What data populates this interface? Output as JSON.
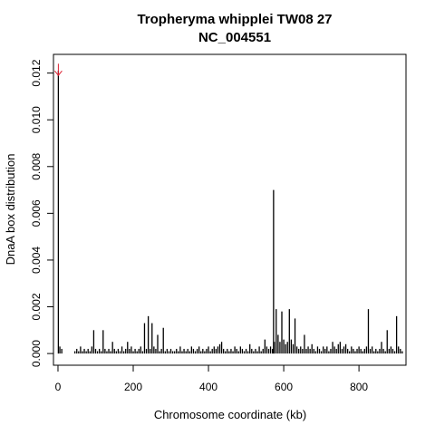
{
  "chart_data": {
    "type": "bar",
    "title": "Tropheryma whipplei TW08 27",
    "subtitle": "NC_004551",
    "xlabel": "Chromosome coordinate (kb)",
    "ylabel": "DnaA box distribution",
    "xlim": [
      -12,
      925
    ],
    "ylim": [
      -0.0005,
      0.0128
    ],
    "xticks": [
      0,
      200,
      400,
      600,
      800
    ],
    "xtick_labels": [
      "0",
      "200",
      "400",
      "600",
      "800"
    ],
    "yticks": [
      0.0,
      0.002,
      0.004,
      0.006,
      0.008,
      0.01,
      0.012
    ],
    "ytick_labels": [
      "0.000",
      "0.002",
      "0.004",
      "0.006",
      "0.008",
      "0.010",
      "0.012"
    ],
    "grid": false,
    "arrow": {
      "x": 1,
      "color": "#dd2233"
    },
    "x": [
      1,
      5,
      10,
      45,
      50,
      55,
      60,
      65,
      70,
      75,
      80,
      85,
      90,
      95,
      100,
      105,
      110,
      115,
      120,
      125,
      130,
      135,
      140,
      145,
      150,
      155,
      160,
      165,
      170,
      175,
      180,
      185,
      190,
      195,
      200,
      205,
      210,
      215,
      220,
      225,
      230,
      235,
      240,
      245,
      250,
      255,
      260,
      265,
      270,
      275,
      280,
      285,
      290,
      295,
      300,
      305,
      310,
      315,
      320,
      325,
      330,
      335,
      340,
      345,
      350,
      355,
      360,
      365,
      370,
      375,
      380,
      385,
      390,
      395,
      400,
      405,
      410,
      415,
      420,
      425,
      430,
      435,
      440,
      445,
      450,
      455,
      460,
      465,
      470,
      475,
      480,
      485,
      490,
      495,
      500,
      505,
      510,
      515,
      520,
      525,
      530,
      535,
      540,
      545,
      550,
      555,
      560,
      565,
      570,
      573,
      575,
      580,
      585,
      590,
      595,
      600,
      605,
      610,
      615,
      620,
      625,
      630,
      635,
      640,
      645,
      650,
      655,
      660,
      665,
      670,
      675,
      680,
      685,
      690,
      695,
      700,
      705,
      710,
      715,
      720,
      725,
      730,
      735,
      740,
      745,
      750,
      755,
      760,
      765,
      770,
      775,
      780,
      785,
      790,
      795,
      800,
      805,
      810,
      815,
      820,
      825,
      830,
      835,
      840,
      845,
      850,
      855,
      860,
      865,
      870,
      875,
      880,
      885,
      890,
      895,
      900,
      905,
      910,
      915
    ],
    "values": [
      0.0121,
      0.0003,
      0.0002,
      0.0001,
      0.0002,
      0.0001,
      0.0003,
      0.0001,
      0.0002,
      0.0001,
      0.0002,
      0.0001,
      0.0003,
      0.001,
      0.0002,
      0.0001,
      0.0002,
      0.0001,
      0.001,
      0.0002,
      0.0001,
      0.0002,
      0.0001,
      0.0005,
      0.0002,
      0.0001,
      0.0002,
      0.0001,
      0.0003,
      0.0001,
      0.0002,
      0.0005,
      0.0002,
      0.0003,
      0.0001,
      0.0002,
      0.0001,
      0.0002,
      0.0003,
      0.0001,
      0.0013,
      0.0002,
      0.0016,
      0.0002,
      0.0013,
      0.0003,
      0.0002,
      0.0008,
      0.0001,
      0.0002,
      0.0011,
      0.0001,
      0.0002,
      0.0001,
      0.0002,
      0.0001,
      0.0001,
      0.0002,
      0.0001,
      0.0003,
      0.0001,
      0.0002,
      0.0001,
      0.0002,
      0.0001,
      0.0003,
      0.0002,
      0.0001,
      0.0002,
      0.0003,
      0.0001,
      0.0002,
      0.0001,
      0.0002,
      0.0003,
      0.0001,
      0.0002,
      0.0003,
      0.0002,
      0.0003,
      0.0004,
      0.0005,
      0.0002,
      0.0001,
      0.0002,
      0.0001,
      0.0002,
      0.0001,
      0.0003,
      0.0002,
      0.0001,
      0.0003,
      0.0002,
      0.0001,
      0.0002,
      0.0001,
      0.0004,
      0.0002,
      0.0001,
      0.0002,
      0.0001,
      0.0003,
      0.0001,
      0.0002,
      0.0006,
      0.0003,
      0.0002,
      0.0003,
      0.0002,
      0.007,
      0.0005,
      0.0019,
      0.0008,
      0.0005,
      0.0018,
      0.0006,
      0.0004,
      0.0005,
      0.0019,
      0.0006,
      0.0004,
      0.0015,
      0.0003,
      0.0002,
      0.0003,
      0.0002,
      0.0008,
      0.0002,
      0.0003,
      0.0002,
      0.0004,
      0.0002,
      0.0001,
      0.0003,
      0.0002,
      0.0001,
      0.0003,
      0.0002,
      0.0003,
      0.0001,
      0.0002,
      0.0005,
      0.0003,
      0.0002,
      0.0004,
      0.0005,
      0.0002,
      0.0003,
      0.0004,
      0.0002,
      0.0001,
      0.0003,
      0.0002,
      0.0001,
      0.0002,
      0.0003,
      0.0002,
      0.0001,
      0.0002,
      0.0003,
      0.0019,
      0.0002,
      0.0003,
      0.0001,
      0.0002,
      0.0001,
      0.0002,
      0.0005,
      0.0002,
      0.0001,
      0.001,
      0.0002,
      0.0003,
      0.0002,
      0.0001,
      0.0016,
      0.0003,
      0.0002,
      0.0001
    ]
  }
}
